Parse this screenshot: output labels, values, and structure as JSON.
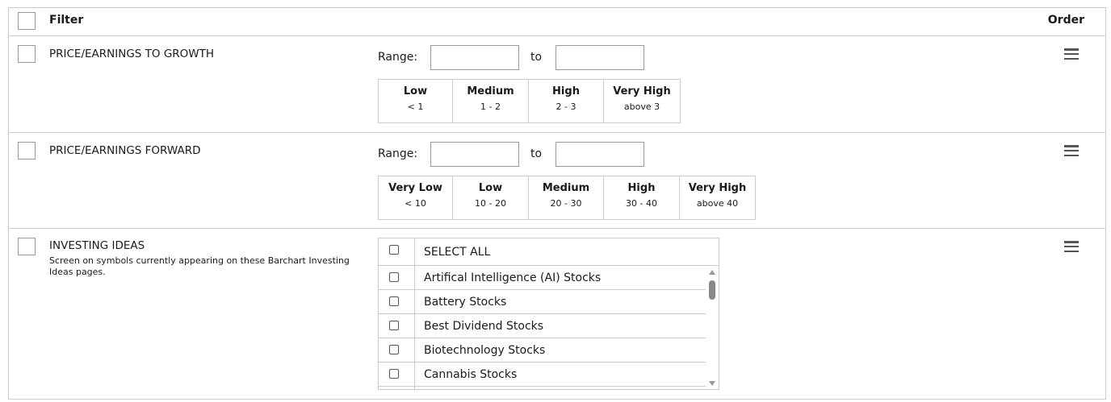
{
  "header": {
    "filter_label": "Filter",
    "order_label": "Order"
  },
  "filters": [
    {
      "title": "PRICE/EARNINGS TO GROWTH",
      "range_label": "Range:",
      "to_label": "to",
      "from_value": "",
      "to_value": "",
      "presets": [
        {
          "label": "Low",
          "range": "< 1"
        },
        {
          "label": "Medium",
          "range": "1 - 2"
        },
        {
          "label": "High",
          "range": "2 - 3"
        },
        {
          "label": "Very High",
          "range": "above 3"
        }
      ]
    },
    {
      "title": "PRICE/EARNINGS FORWARD",
      "range_label": "Range:",
      "to_label": "to",
      "from_value": "",
      "to_value": "",
      "presets": [
        {
          "label": "Very Low",
          "range": "< 10"
        },
        {
          "label": "Low",
          "range": "10 - 20"
        },
        {
          "label": "Medium",
          "range": "20 - 30"
        },
        {
          "label": "High",
          "range": "30 - 40"
        },
        {
          "label": "Very High",
          "range": "above 40"
        }
      ]
    },
    {
      "title": "INVESTING IDEAS",
      "description": "Screen on symbols currently appearing on these Barchart Investing Ideas pages.",
      "select_all": "SELECT ALL",
      "items": [
        "Artifical Intelligence (AI) Stocks",
        "Battery Stocks",
        "Best Dividend Stocks",
        "Biotechnology Stocks",
        "Cannabis Stocks"
      ]
    }
  ],
  "scroll_position_percent": 0
}
